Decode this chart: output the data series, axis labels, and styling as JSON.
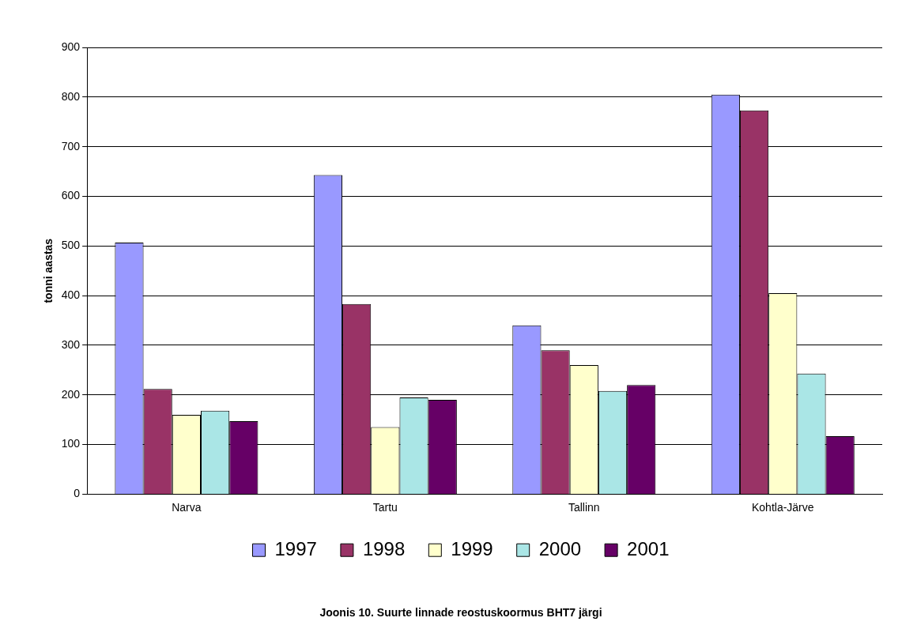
{
  "chart_data": {
    "type": "bar",
    "title": "Joonis 10. Suurte linnade reostuskoormus BHT7 järgi",
    "ylabel": "tonni aastas",
    "categories": [
      "Narva",
      "Tartu",
      "Tallinn",
      "Kohtla-Järve"
    ],
    "series": [
      {
        "name": "1997",
        "color": "#9999ff",
        "values": [
          507,
          643,
          340,
          805
        ]
      },
      {
        "name": "1998",
        "color": "#993366",
        "values": [
          212,
          383,
          290,
          773
        ]
      },
      {
        "name": "1999",
        "color": "#ffffcc",
        "values": [
          160,
          135,
          260,
          405
        ]
      },
      {
        "name": "2000",
        "color": "#aae6e6",
        "values": [
          168,
          195,
          208,
          243
        ]
      },
      {
        "name": "2001",
        "color": "#660066",
        "values": [
          147,
          190,
          220,
          117
        ]
      }
    ],
    "ylim": [
      0,
      900
    ],
    "yticks": [
      0,
      100,
      200,
      300,
      400,
      500,
      600,
      700,
      800,
      900
    ],
    "grid": "y",
    "legend": "bottom"
  }
}
